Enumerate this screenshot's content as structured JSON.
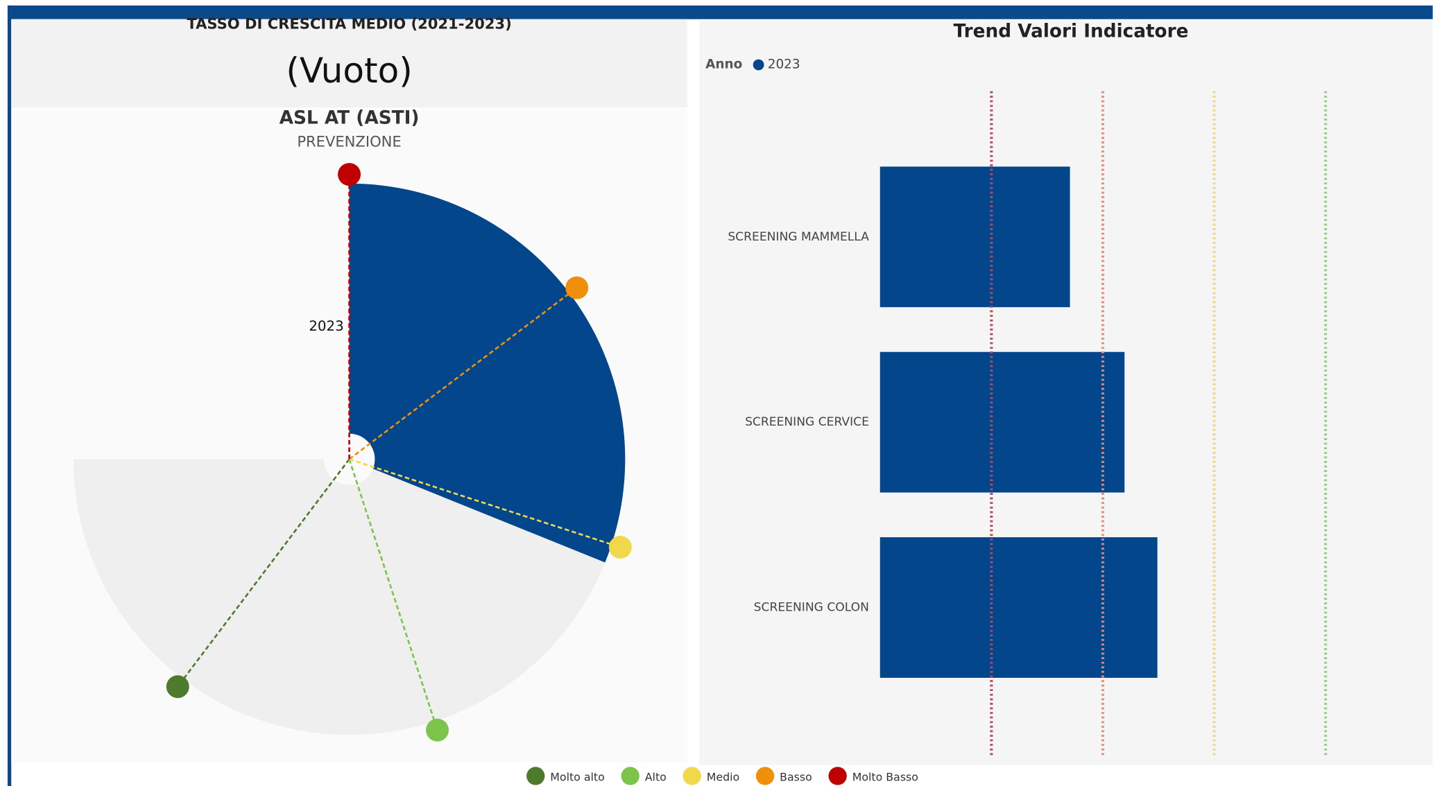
{
  "growth_card": {
    "title": "TASSO DI CRESCITA MEDIO (2021-2023)",
    "value": "(Vuoto)"
  },
  "chart_data": [
    {
      "type": "radial",
      "title": "ASL AT (ASTI)",
      "subtitle": "PREVENZIONE",
      "categories": [
        "2023"
      ],
      "values": [
        112
      ],
      "color": "#03468c",
      "background_color": "#efefef",
      "rlim": [
        0,
        360
      ],
      "thresholds": [
        {
          "name": "Molto alto",
          "value": 217,
          "color": "#4e7a2e"
        },
        {
          "name": "Alto",
          "value": 162,
          "color": "#7cc44a"
        },
        {
          "name": "Medio",
          "value": 108,
          "color": "#f0d84a"
        },
        {
          "name": "Basso",
          "value": 53,
          "color": "#f0900a"
        },
        {
          "name": "Molto Basso",
          "value": 0,
          "color": "#c00000"
        }
      ]
    },
    {
      "type": "bar",
      "orientation": "horizontal",
      "title": "Trend Valori Indicatore",
      "legend_title": "Anno",
      "categories": [
        "SCREENING MAMMELLA",
        "SCREENING CERVICE",
        "SCREENING COLON"
      ],
      "series": [
        {
          "name": "2023",
          "color": "#03468c",
          "values": [
            34.1,
            43.9,
            49.8
          ]
        }
      ],
      "xlim": [
        0,
        93
      ],
      "reference_lines": [
        20,
        40,
        60,
        80
      ],
      "reference_colors": [
        "#b94a5a",
        "#e0907a",
        "#e8d88a",
        "#90d080"
      ]
    }
  ]
}
